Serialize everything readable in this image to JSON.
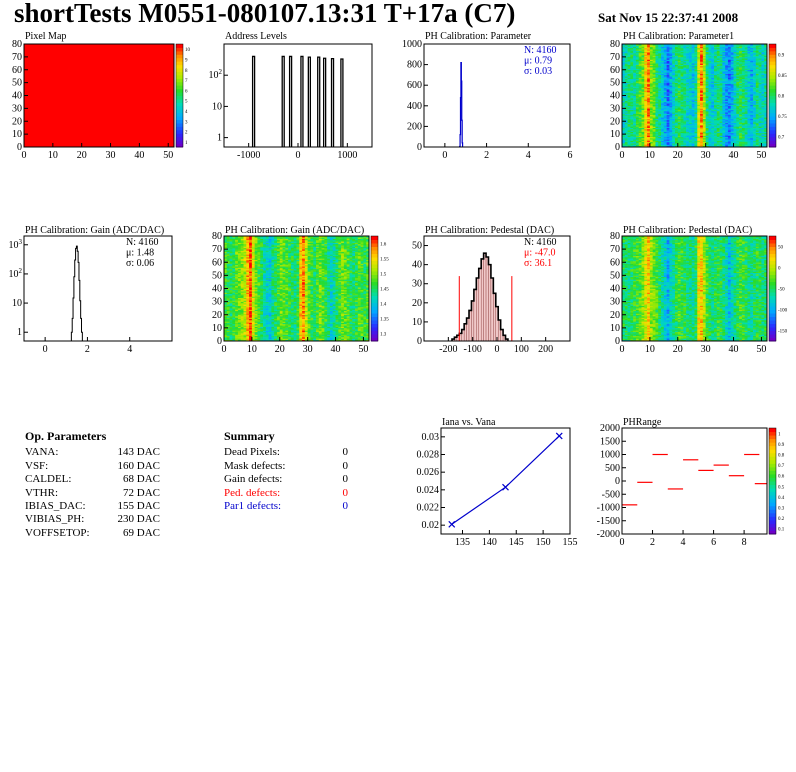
{
  "header": {
    "title": "shortTests M0551-080107.13:31 T+17a (C7)",
    "date": "Sat Nov 15 22:37:41 2008"
  },
  "op_parameters": {
    "heading": "Op. Parameters",
    "rows": [
      {
        "name": "VANA:",
        "value": "143 DAC"
      },
      {
        "name": "VSF:",
        "value": "160 DAC"
      },
      {
        "name": "CALDEL:",
        "value": "68 DAC"
      },
      {
        "name": "VTHR:",
        "value": "72 DAC"
      },
      {
        "name": "IBIAS_DAC:",
        "value": "155 DAC"
      },
      {
        "name": "VIBIAS_PH:",
        "value": "230 DAC"
      },
      {
        "name": "VOFFSETOP:",
        "value": "69 DAC"
      }
    ]
  },
  "summary": {
    "heading": "Summary",
    "rows": [
      {
        "name": "Dead Pixels:",
        "value": "0",
        "color": "#000000"
      },
      {
        "name": "Mask defects:",
        "value": "0",
        "color": "#000000"
      },
      {
        "name": "Gain defects:",
        "value": "0",
        "color": "#000000"
      },
      {
        "name": "Ped. defects:",
        "value": "0",
        "color": "#ff0000"
      },
      {
        "name": "Par1 defects:",
        "value": "0",
        "color": "#0000cc"
      }
    ]
  },
  "colors": {
    "red": "#ff0000",
    "blue": "#0000cc",
    "pedestal_fill": "#f0c8c8"
  },
  "chart_data": [
    {
      "id": "pixel_map",
      "type": "heatmap",
      "title": "Pixel Map",
      "xlim": [
        0,
        52
      ],
      "ylim": [
        0,
        80
      ],
      "xticks": [
        "0",
        "10",
        "20",
        "30",
        "40",
        "50"
      ],
      "yticks": [
        "0",
        "10",
        "20",
        "30",
        "40",
        "50",
        "60",
        "70",
        "80"
      ],
      "fill": "uniform",
      "value": 10,
      "zticks": [
        "1",
        "2",
        "3",
        "4",
        "5",
        "6",
        "7",
        "8",
        "9",
        "10"
      ]
    },
    {
      "id": "address_levels",
      "type": "bar",
      "title": "Address Levels",
      "log_y": true,
      "xlim": [
        -1500,
        1500
      ],
      "ylim": [
        0.5,
        1000
      ],
      "xticks": [
        "-1000",
        "0",
        "1000"
      ],
      "yticks": [
        "1",
        "10",
        "10^2"
      ],
      "peaks": [
        {
          "x": -900,
          "y": 400
        },
        {
          "x": -300,
          "y": 400
        },
        {
          "x": -150,
          "y": 400
        },
        {
          "x": 80,
          "y": 400
        },
        {
          "x": 230,
          "y": 380
        },
        {
          "x": 420,
          "y": 380
        },
        {
          "x": 540,
          "y": 350
        },
        {
          "x": 700,
          "y": 340
        },
        {
          "x": 890,
          "y": 330
        }
      ]
    },
    {
      "id": "ph_parameter",
      "type": "bar",
      "title": "PH Calibration: Parameter",
      "xlim": [
        -1,
        6
      ],
      "ylim": [
        0,
        1000
      ],
      "xticks": [
        "0",
        "2",
        "4",
        "6"
      ],
      "yticks": [
        "0",
        "200",
        "400",
        "600",
        "800",
        "1000"
      ],
      "stats": {
        "n": "N: 4160",
        "mean": "μ: 0.79",
        "sigma": "σ: 0.03"
      },
      "bins": [
        {
          "x": 0.72,
          "y": 5
        },
        {
          "x": 0.74,
          "y": 120
        },
        {
          "x": 0.76,
          "y": 480
        },
        {
          "x": 0.78,
          "y": 820
        },
        {
          "x": 0.8,
          "y": 640
        },
        {
          "x": 0.82,
          "y": 260
        },
        {
          "x": 0.84,
          "y": 40
        }
      ]
    },
    {
      "id": "ph_parameter1_map",
      "type": "heatmap",
      "title": "PH Calibration: Parameter1",
      "xlim": [
        0,
        52
      ],
      "ylim": [
        0,
        80
      ],
      "xticks": [
        "0",
        "10",
        "20",
        "30",
        "40",
        "50"
      ],
      "yticks": [
        "0",
        "10",
        "20",
        "30",
        "40",
        "50",
        "60",
        "70",
        "80"
      ],
      "zticks": [
        "0.7",
        "0.75",
        "0.8",
        "0.85",
        "0.9"
      ],
      "column_profile": [
        0.78,
        0.79,
        0.8,
        0.8,
        0.79,
        0.81,
        0.82,
        0.83,
        0.88,
        0.9,
        0.84,
        0.83,
        0.8,
        0.79,
        0.77,
        0.76,
        0.74,
        0.76,
        0.78,
        0.8,
        0.81,
        0.8,
        0.79,
        0.78,
        0.78,
        0.77,
        0.79,
        0.86,
        0.9,
        0.85,
        0.8,
        0.78,
        0.77,
        0.79,
        0.8,
        0.79,
        0.77,
        0.75,
        0.74,
        0.76,
        0.78,
        0.8,
        0.81,
        0.8,
        0.79,
        0.77,
        0.76,
        0.78,
        0.8,
        0.79,
        0.78,
        0.79
      ]
    },
    {
      "id": "gain_hist",
      "type": "bar",
      "title": "PH Calibration: Gain (ADC/DAC)",
      "log_y": true,
      "xlim": [
        -1,
        6
      ],
      "ylim": [
        0.5,
        2000
      ],
      "xticks": [
        "0",
        "2",
        "4"
      ],
      "yticks": [
        "1",
        "10",
        "10^2",
        "10^3"
      ],
      "stats": {
        "n": "N: 4160",
        "mean": "μ: 1.48",
        "sigma": "σ: 0.06"
      },
      "bins": [
        {
          "x": 1.26,
          "y": 1
        },
        {
          "x": 1.3,
          "y": 3
        },
        {
          "x": 1.34,
          "y": 15
        },
        {
          "x": 1.38,
          "y": 80
        },
        {
          "x": 1.42,
          "y": 300
        },
        {
          "x": 1.46,
          "y": 750
        },
        {
          "x": 1.5,
          "y": 900
        },
        {
          "x": 1.54,
          "y": 600
        },
        {
          "x": 1.58,
          "y": 250
        },
        {
          "x": 1.62,
          "y": 60
        },
        {
          "x": 1.66,
          "y": 12
        },
        {
          "x": 1.7,
          "y": 3
        },
        {
          "x": 1.74,
          "y": 1
        }
      ]
    },
    {
      "id": "gain_map",
      "type": "heatmap",
      "title": "PH Calibration: Gain (ADC/DAC)",
      "xlim": [
        0,
        52
      ],
      "ylim": [
        0,
        80
      ],
      "xticks": [
        "0",
        "10",
        "20",
        "30",
        "40",
        "50"
      ],
      "yticks": [
        "0",
        "10",
        "20",
        "30",
        "40",
        "50",
        "60",
        "70",
        "80"
      ],
      "zticks": [
        "1.3",
        "1.35",
        "1.4",
        "1.45",
        "1.5",
        "1.55",
        "1.6"
      ],
      "column_profile": [
        1.48,
        1.47,
        1.46,
        1.47,
        1.49,
        1.5,
        1.51,
        1.53,
        1.58,
        1.62,
        1.54,
        1.5,
        1.48,
        1.46,
        1.43,
        1.42,
        1.41,
        1.44,
        1.46,
        1.48,
        1.5,
        1.49,
        1.48,
        1.47,
        1.46,
        1.45,
        1.47,
        1.57,
        1.6,
        1.53,
        1.49,
        1.47,
        1.46,
        1.48,
        1.5,
        1.49,
        1.47,
        1.44,
        1.42,
        1.44,
        1.46,
        1.48,
        1.5,
        1.49,
        1.48,
        1.46,
        1.45,
        1.47,
        1.49,
        1.48,
        1.47,
        1.48
      ]
    },
    {
      "id": "pedestal_hist",
      "type": "bar",
      "title": "PH Calibration: Pedestal (DAC)",
      "xlim": [
        -300,
        300
      ],
      "ylim": [
        0,
        55
      ],
      "xticks": [
        "-200",
        "-100",
        "0",
        "100",
        "200"
      ],
      "yticks": [
        "0",
        "10",
        "20",
        "30",
        "40",
        "50"
      ],
      "stats": {
        "n": "N: 4160",
        "mean": "μ: -47.0",
        "sigma": "σ: 36.1"
      },
      "cut_lines": [
        -155,
        61
      ],
      "bins": [
        {
          "x": -180,
          "y": 1
        },
        {
          "x": -170,
          "y": 2
        },
        {
          "x": -160,
          "y": 3
        },
        {
          "x": -150,
          "y": 4
        },
        {
          "x": -140,
          "y": 6
        },
        {
          "x": -130,
          "y": 9
        },
        {
          "x": -120,
          "y": 12
        },
        {
          "x": -110,
          "y": 16
        },
        {
          "x": -100,
          "y": 21
        },
        {
          "x": -90,
          "y": 27
        },
        {
          "x": -80,
          "y": 33
        },
        {
          "x": -70,
          "y": 38
        },
        {
          "x": -60,
          "y": 43
        },
        {
          "x": -50,
          "y": 46
        },
        {
          "x": -40,
          "y": 44
        },
        {
          "x": -30,
          "y": 40
        },
        {
          "x": -20,
          "y": 33
        },
        {
          "x": -10,
          "y": 25
        },
        {
          "x": 0,
          "y": 18
        },
        {
          "x": 10,
          "y": 11
        },
        {
          "x": 20,
          "y": 6
        },
        {
          "x": 30,
          "y": 3
        },
        {
          "x": 40,
          "y": 1
        }
      ]
    },
    {
      "id": "pedestal_map",
      "type": "heatmap",
      "title": "PH Calibration: Pedestal (DAC)",
      "xlim": [
        0,
        52
      ],
      "ylim": [
        0,
        80
      ],
      "xticks": [
        "0",
        "10",
        "20",
        "30",
        "40",
        "50"
      ],
      "yticks": [
        "0",
        "10",
        "20",
        "30",
        "40",
        "50",
        "60",
        "70",
        "80"
      ],
      "zticks": [
        "-150",
        "-100",
        "-50",
        "0",
        "50"
      ],
      "column_profile": [
        -40,
        -45,
        -50,
        -42,
        -35,
        -30,
        -25,
        -10,
        10,
        30,
        -5,
        -20,
        -30,
        -45,
        -60,
        -75,
        -90,
        -70,
        -55,
        -40,
        -30,
        -35,
        -40,
        -48,
        -52,
        -55,
        -40,
        20,
        35,
        0,
        -30,
        -45,
        -55,
        -42,
        -35,
        -40,
        -50,
        -65,
        -85,
        -70,
        -55,
        -40,
        -30,
        -35,
        -42,
        -50,
        -58,
        -48,
        -38,
        -42,
        -50,
        -45
      ]
    },
    {
      "id": "iana_vs_vana",
      "type": "line",
      "title": "Iana vs. Vana",
      "xlim": [
        131,
        155
      ],
      "ylim": [
        0.019,
        0.031
      ],
      "xticks": [
        "135",
        "140",
        "145",
        "150",
        "155"
      ],
      "yticks": [
        "0.02",
        "0.022",
        "0.024",
        "0.026",
        "0.028",
        "0.03"
      ],
      "x": [
        133,
        143,
        153
      ],
      "y": [
        0.0201,
        0.0243,
        0.0301
      ]
    },
    {
      "id": "ph_range",
      "type": "scatter",
      "title": "PHRange",
      "xlim": [
        0,
        9.5
      ],
      "ylim": [
        -2000,
        2000
      ],
      "xticks": [
        "0",
        "2",
        "4",
        "6",
        "8"
      ],
      "yticks": [
        "2000",
        "1500",
        "1000",
        "500",
        "0",
        "-500",
        "-1000",
        "-1500",
        "-2000"
      ],
      "zticks": [
        "0.1",
        "0.2",
        "0.3",
        "0.4",
        "0.5",
        "0.6",
        "0.7",
        "0.8",
        "0.9",
        "1"
      ],
      "segments": [
        {
          "x": 0.5,
          "y": -900
        },
        {
          "x": 1.5,
          "y": -50
        },
        {
          "x": 2.5,
          "y": 1000
        },
        {
          "x": 3.5,
          "y": -300
        },
        {
          "x": 4.5,
          "y": 800
        },
        {
          "x": 5.5,
          "y": 400
        },
        {
          "x": 6.5,
          "y": 600
        },
        {
          "x": 7.5,
          "y": 200
        },
        {
          "x": 8.5,
          "y": 1000
        },
        {
          "x": 9.2,
          "y": -100
        }
      ]
    }
  ]
}
